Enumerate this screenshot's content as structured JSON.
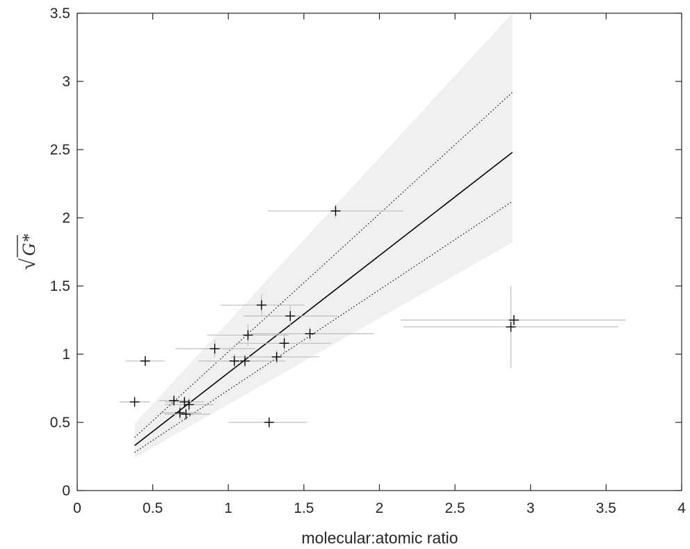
{
  "chart_data": {
    "type": "scatter",
    "xlabel": "molecular:atomic ratio",
    "ylabel": "G*",
    "ylabel_prefix": "√",
    "xlim": [
      0,
      4
    ],
    "ylim": [
      0,
      3.5
    ],
    "xticks": [
      "0",
      "0.5",
      "1",
      "1.5",
      "2",
      "2.5",
      "3",
      "3.5",
      "4"
    ],
    "xtick_values": [
      0,
      0.5,
      1,
      1.5,
      2,
      2.5,
      3,
      3.5,
      4
    ],
    "yticks": [
      "0",
      "0.5",
      "1",
      "1.5",
      "2",
      "2.5",
      "3",
      "3.5"
    ],
    "ytick_values": [
      0,
      0.5,
      1,
      1.5,
      2,
      2.5,
      3,
      3.5
    ],
    "grid": false,
    "legend": null,
    "colors": {
      "points": "#000000",
      "error_bars": "#bdbdbd",
      "band": "#f0f0f0",
      "fit_line": "#000000",
      "axes": "#262626"
    },
    "points": [
      {
        "x": 0.38,
        "y": 0.65,
        "xerr": [
          0.28,
          0.48
        ],
        "yerr": [
          0.64,
          0.66
        ]
      },
      {
        "x": 0.45,
        "y": 0.95,
        "xerr": [
          0.32,
          0.58
        ],
        "yerr": [
          0.93,
          0.97
        ]
      },
      {
        "x": 0.64,
        "y": 0.66,
        "xerr": [
          0.54,
          0.74
        ],
        "yerr": [
          0.64,
          0.68
        ]
      },
      {
        "x": 0.68,
        "y": 0.57,
        "xerr": [
          0.55,
          0.82
        ],
        "yerr": [
          0.52,
          0.62
        ]
      },
      {
        "x": 0.71,
        "y": 0.65,
        "xerr": [
          0.58,
          0.84
        ],
        "yerr": [
          0.62,
          0.68
        ]
      },
      {
        "x": 0.72,
        "y": 0.56,
        "xerr": [
          0.58,
          0.88
        ],
        "yerr": [
          0.52,
          0.6
        ]
      },
      {
        "x": 0.74,
        "y": 0.63,
        "xerr": [
          0.58,
          0.9
        ],
        "yerr": [
          0.58,
          0.68
        ]
      },
      {
        "x": 0.91,
        "y": 1.04,
        "xerr": [
          0.65,
          1.18
        ],
        "yerr": [
          0.98,
          1.1
        ]
      },
      {
        "x": 1.04,
        "y": 0.95,
        "xerr": [
          0.8,
          1.26
        ],
        "yerr": [
          0.9,
          1.0
        ]
      },
      {
        "x": 1.11,
        "y": 0.95,
        "xerr": [
          0.84,
          1.38
        ],
        "yerr": [
          0.9,
          1.0
        ]
      },
      {
        "x": 1.13,
        "y": 1.14,
        "xerr": [
          0.86,
          1.4
        ],
        "yerr": [
          1.06,
          1.22
        ]
      },
      {
        "x": 1.22,
        "y": 1.36,
        "xerr": [
          0.95,
          1.5
        ],
        "yerr": [
          1.28,
          1.44
        ]
      },
      {
        "x": 1.27,
        "y": 0.5,
        "xerr": [
          1.0,
          1.52
        ],
        "yerr": [
          0.48,
          0.52
        ]
      },
      {
        "x": 1.32,
        "y": 0.98,
        "xerr": [
          1.02,
          1.6
        ],
        "yerr": [
          0.93,
          1.03
        ]
      },
      {
        "x": 1.37,
        "y": 1.08,
        "xerr": [
          1.06,
          1.68
        ],
        "yerr": [
          1.01,
          1.15
        ]
      },
      {
        "x": 1.41,
        "y": 1.28,
        "xerr": [
          1.1,
          1.72
        ],
        "yerr": [
          1.2,
          1.36
        ]
      },
      {
        "x": 1.54,
        "y": 1.15,
        "xerr": [
          1.15,
          1.96
        ],
        "yerr": [
          1.1,
          1.2
        ]
      },
      {
        "x": 1.71,
        "y": 2.05,
        "xerr": [
          1.26,
          2.16
        ],
        "yerr": [
          2.0,
          2.1
        ]
      },
      {
        "x": 2.87,
        "y": 1.2,
        "xerr": [
          2.16,
          3.58
        ],
        "yerr": [
          0.9,
          1.5
        ]
      },
      {
        "x": 2.89,
        "y": 1.25,
        "xerr": [
          2.14,
          3.63
        ],
        "yerr": [
          1.22,
          1.28
        ]
      }
    ],
    "fit": {
      "line": [
        [
          0.38,
          0.33
        ],
        [
          2.88,
          2.48
        ]
      ],
      "inner_upper": [
        [
          0.38,
          0.39
        ],
        [
          2.88,
          2.92
        ]
      ],
      "inner_lower": [
        [
          0.38,
          0.28
        ],
        [
          2.88,
          2.12
        ]
      ],
      "band_upper": [
        [
          0.38,
          0.49
        ],
        [
          2.88,
          3.5
        ]
      ],
      "band_lower": [
        [
          0.38,
          0.24
        ],
        [
          2.88,
          1.82
        ]
      ]
    }
  }
}
